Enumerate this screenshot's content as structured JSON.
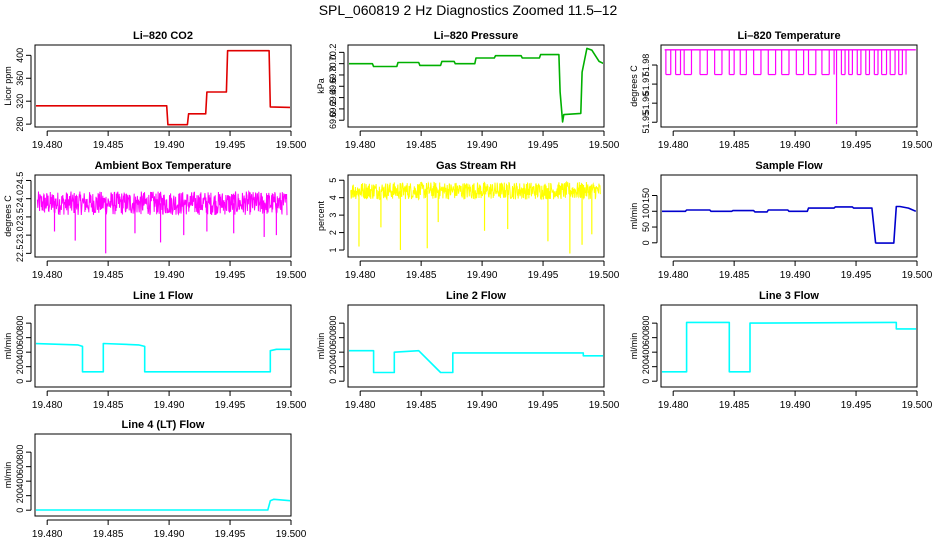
{
  "figure_title": "SPL_060819  2 Hz Diagnostics Zoomed 11.5–12",
  "chart_data": [
    {
      "type": "line",
      "title": "Li–820 CO2",
      "ylabel": "Licor ppm",
      "color": "#e00000",
      "xlim": [
        19.479,
        19.5
      ],
      "ylim": [
        275,
        418
      ],
      "xticks": [
        "19.480",
        "19.485",
        "19.490",
        "19.495",
        "19.500"
      ],
      "yticks": [
        "280",
        "320",
        "360",
        "400"
      ],
      "x": [
        19.479,
        19.4898,
        19.4899,
        19.4915,
        19.4916,
        19.493,
        19.4931,
        19.4947,
        19.4948,
        19.4982,
        19.4983,
        19.5
      ],
      "y": [
        312,
        312,
        279,
        279,
        298,
        298,
        336,
        336,
        408,
        408,
        310,
        309
      ]
    },
    {
      "type": "line",
      "title": "Li–820 Pressure",
      "ylabel": "kPa",
      "color": "#00b000",
      "xlim": [
        19.479,
        19.5
      ],
      "ylim": [
        68.88,
        70.33
      ],
      "xticks": [
        "19.480",
        "19.485",
        "19.490",
        "19.495",
        "19.500"
      ],
      "yticks": [
        "69.0",
        "69.2",
        "69.4",
        "69.6",
        "69.8",
        "70.0",
        "70.2"
      ],
      "x": [
        19.479,
        19.481,
        19.4811,
        19.483,
        19.4831,
        19.4848,
        19.4849,
        19.4866,
        19.4867,
        19.4877,
        19.4878,
        19.4894,
        19.4895,
        19.491,
        19.4911,
        19.4932,
        19.4933,
        19.4947,
        19.4948,
        19.4963,
        19.4964,
        19.4966,
        19.4967,
        19.4981,
        19.4982,
        19.4986,
        19.499,
        19.4996,
        19.5
      ],
      "y": [
        70.0,
        70.0,
        69.95,
        69.95,
        70.02,
        70.02,
        69.97,
        69.97,
        70.04,
        70.04,
        70.0,
        70.0,
        70.1,
        70.1,
        70.14,
        70.14,
        70.1,
        70.1,
        70.16,
        70.16,
        69.5,
        68.97,
        69.1,
        69.12,
        69.85,
        70.27,
        70.24,
        70.04,
        70.0
      ]
    },
    {
      "type": "line",
      "title": "Li–820 Temperature",
      "ylabel": "degrees C",
      "color": "#ff00ff",
      "xlim": [
        19.479,
        19.5
      ],
      "ylim": [
        51.9475,
        51.9905
      ],
      "xticks": [
        "19.480",
        "19.485",
        "19.490",
        "19.495",
        "19.500"
      ],
      "yticks": [
        "51.95",
        "51.96",
        "51.97",
        "51.98"
      ],
      "baseline": 51.988,
      "dips_x": [
        19.4794,
        19.4798,
        19.4802,
        19.4806,
        19.4809,
        19.4815,
        19.4822,
        19.4828,
        19.4834,
        19.484,
        19.4846,
        19.485,
        19.4855,
        19.486,
        19.4866,
        19.4872,
        19.4878,
        19.4884,
        19.4889,
        19.4895,
        19.4901,
        19.4907,
        19.4911,
        19.4917,
        19.4922,
        19.4928,
        19.4932,
        19.4934,
        19.4938,
        19.4941,
        19.4944,
        19.4947,
        19.4951,
        19.4954,
        19.4958,
        19.4961,
        19.4965,
        19.4968,
        19.4971,
        19.4975,
        19.4978,
        19.4982,
        19.4985,
        19.4988,
        19.4991
      ],
      "dips_y": [
        51.975,
        51.975,
        51.975,
        51.975,
        51.975,
        51.975,
        51.975,
        51.975,
        51.975,
        51.975,
        51.975,
        51.975,
        51.975,
        51.975,
        51.975,
        51.975,
        51.975,
        51.975,
        51.975,
        51.975,
        51.975,
        51.975,
        51.975,
        51.975,
        51.975,
        51.975,
        51.975,
        51.949,
        51.975,
        51.975,
        51.975,
        51.975,
        51.975,
        51.975,
        51.975,
        51.975,
        51.975,
        51.975,
        51.975,
        51.975,
        51.975,
        51.975,
        51.975,
        51.975,
        51.975
      ]
    },
    {
      "type": "line",
      "title": "Ambient Box Temperature",
      "ylabel": "degrees C",
      "color": "#ff00ff",
      "xlim": [
        19.479,
        19.5
      ],
      "ylim": [
        22.4,
        24.65
      ],
      "xticks": [
        "19.480",
        "19.485",
        "19.490",
        "19.495",
        "19.500"
      ],
      "yticks": [
        "22.5",
        "23.0",
        "23.5",
        "24.0",
        "24.5"
      ],
      "band": [
        23.55,
        24.2
      ],
      "spikes_x": [
        19.4806,
        19.4823,
        19.4848,
        19.4872,
        19.4893,
        19.4912,
        19.4931,
        19.4953,
        19.4978,
        19.4988
      ],
      "spikes_y": [
        23.1,
        22.85,
        22.5,
        23.05,
        22.8,
        23.0,
        23.1,
        23.05,
        22.95,
        23.0
      ]
    },
    {
      "type": "line",
      "title": "Gas Stream RH",
      "ylabel": "percent",
      "color": "#ffff00",
      "xlim": [
        19.479,
        19.5
      ],
      "ylim": [
        0.6,
        5.3
      ],
      "xticks": [
        "19.480",
        "19.485",
        "19.490",
        "19.495",
        "19.500"
      ],
      "yticks": [
        "1",
        "2",
        "3",
        "4",
        "5"
      ],
      "band": [
        3.9,
        4.9
      ],
      "spikes_x": [
        19.4799,
        19.4817,
        19.4833,
        19.4855,
        19.4864,
        19.4902,
        19.4921,
        19.4954,
        19.4972,
        19.4982,
        19.499
      ],
      "spikes_y": [
        1.2,
        2.3,
        1.0,
        1.1,
        2.6,
        2.1,
        2.2,
        1.5,
        0.8,
        1.3,
        1.9
      ]
    },
    {
      "type": "line",
      "title": "Sample Flow",
      "ylabel": "ml/min",
      "color": "#0000cd",
      "xlim": [
        19.479,
        19.5
      ],
      "ylim": [
        -45,
        215
      ],
      "xticks": [
        "19.480",
        "19.485",
        "19.490",
        "19.495",
        "19.500"
      ],
      "yticks": [
        "0",
        "50",
        "100",
        "150"
      ],
      "x": [
        19.479,
        19.481,
        19.4811,
        19.483,
        19.4831,
        19.4848,
        19.4849,
        19.4866,
        19.4867,
        19.4877,
        19.4878,
        19.4894,
        19.4895,
        19.491,
        19.4911,
        19.4932,
        19.4933,
        19.4947,
        19.4948,
        19.4963,
        19.4966,
        19.4967,
        19.4981,
        19.4983,
        19.4986,
        19.4993,
        19.4999
      ],
      "y": [
        100,
        100,
        104,
        104,
        100,
        100,
        102,
        102,
        98,
        98,
        104,
        104,
        100,
        100,
        110,
        110,
        114,
        114,
        110,
        110,
        0,
        -1,
        -1,
        115,
        115,
        110,
        100
      ]
    },
    {
      "type": "line",
      "title": "Line 1 Flow",
      "ylabel": "ml/min",
      "color": "#00ffff",
      "xlim": [
        19.479,
        19.5
      ],
      "ylim": [
        -80,
        1050
      ],
      "xticks": [
        "19.480",
        "19.485",
        "19.490",
        "19.495",
        "19.500"
      ],
      "yticks": [
        "0",
        "200",
        "400",
        "600",
        "800"
      ],
      "x": [
        19.479,
        19.4825,
        19.4829,
        19.4829,
        19.4846,
        19.4846,
        19.4875,
        19.488,
        19.488,
        19.4983,
        19.4983,
        19.4988,
        19.5
      ],
      "y": [
        520,
        500,
        480,
        130,
        130,
        520,
        500,
        480,
        130,
        130,
        420,
        440,
        440
      ]
    },
    {
      "type": "line",
      "title": "Line 2 Flow",
      "ylabel": "ml/min",
      "color": "#00ffff",
      "xlim": [
        19.479,
        19.5
      ],
      "ylim": [
        -80,
        1050
      ],
      "xticks": [
        "19.480",
        "19.485",
        "19.490",
        "19.495",
        "19.500"
      ],
      "yticks": [
        "0",
        "200",
        "400",
        "600",
        "800"
      ],
      "x": [
        19.479,
        19.4811,
        19.4811,
        19.4828,
        19.4828,
        19.4848,
        19.4848,
        19.4866,
        19.4866,
        19.4876,
        19.4876,
        19.4983,
        19.4983,
        19.5
      ],
      "y": [
        420,
        420,
        120,
        120,
        400,
        420,
        420,
        120,
        120,
        120,
        390,
        390,
        350,
        350
      ]
    },
    {
      "type": "line",
      "title": "Line 3 Flow",
      "ylabel": "ml/min",
      "color": "#00ffff",
      "xlim": [
        19.479,
        19.5
      ],
      "ylim": [
        -80,
        1050
      ],
      "xticks": [
        "19.480",
        "19.485",
        "19.490",
        "19.495",
        "19.500"
      ],
      "yticks": [
        "0",
        "200",
        "400",
        "600",
        "800"
      ],
      "x": [
        19.479,
        19.4811,
        19.4811,
        19.4846,
        19.4846,
        19.4863,
        19.4863,
        19.4983,
        19.4983,
        19.5
      ],
      "y": [
        130,
        130,
        810,
        810,
        130,
        130,
        800,
        810,
        720,
        720
      ]
    },
    {
      "type": "line",
      "title": "Line 4 (LT) Flow",
      "ylabel": "ml/min",
      "color": "#00ffff",
      "xlim": [
        19.479,
        19.5
      ],
      "ylim": [
        -80,
        1050
      ],
      "xticks": [
        "19.480",
        "19.485",
        "19.490",
        "19.495",
        "19.500"
      ],
      "yticks": [
        "0",
        "200",
        "400",
        "600",
        "800"
      ],
      "x": [
        19.479,
        19.4981,
        19.4983,
        19.4986,
        19.5
      ],
      "y": [
        2,
        2,
        130,
        150,
        130
      ]
    }
  ]
}
